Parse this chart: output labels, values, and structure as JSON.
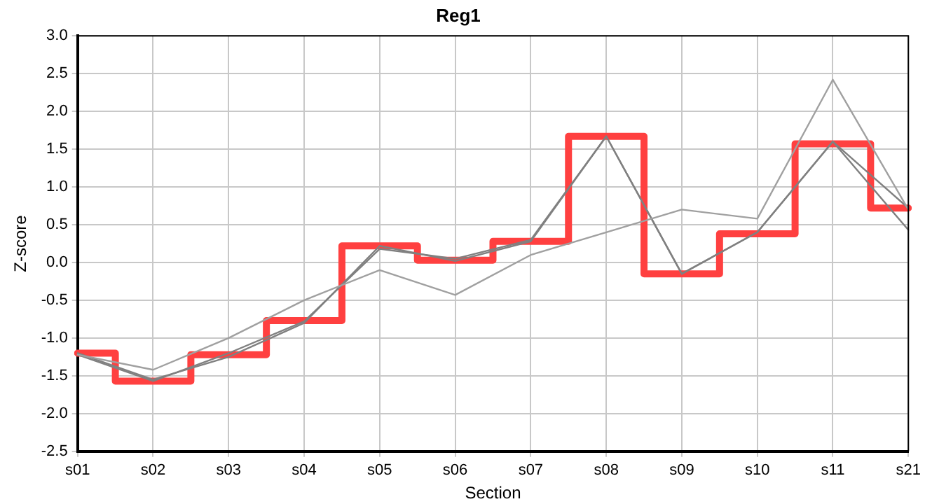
{
  "chart_data": {
    "type": "line",
    "title": "Reg1",
    "xlabel": "Section",
    "ylabel": "Z-score",
    "categories": [
      "s01",
      "s02",
      "s03",
      "s04",
      "s05",
      "s06",
      "s07",
      "s08",
      "s09",
      "s10",
      "s11",
      "s21"
    ],
    "series": [
      {
        "type": "line",
        "color": "#a0a0a0",
        "values": [
          -1.22,
          -1.42,
          -1.0,
          -0.5,
          -0.1,
          -0.43,
          0.1,
          0.4,
          0.7,
          0.58,
          2.42,
          0.7
        ]
      },
      {
        "type": "line",
        "color": "#808080",
        "values": [
          -1.2,
          -1.55,
          -1.25,
          -0.8,
          0.22,
          0.02,
          0.28,
          1.67,
          -0.15,
          0.4,
          1.6,
          0.43
        ]
      },
      {
        "type": "line",
        "color": "#808080",
        "values": [
          -1.22,
          -1.57,
          -1.2,
          -0.78,
          0.18,
          0.05,
          0.3,
          1.67,
          -0.15,
          0.4,
          1.6,
          0.72
        ]
      },
      {
        "type": "step",
        "color": "#ff4040",
        "values": [
          -1.2,
          -1.57,
          -1.22,
          -0.77,
          0.22,
          0.03,
          0.28,
          1.67,
          -0.15,
          0.38,
          1.57,
          0.72
        ]
      }
    ],
    "ylim": [
      -2.5,
      3.0
    ],
    "yticks": [
      {
        "value": -2.5,
        "label": "-2.5"
      },
      {
        "value": -2,
        "label": "-2.0"
      },
      -1.5,
      {
        "value": -1,
        "label": "-1.0"
      },
      -0.5,
      {
        "value": 0,
        "label": "0.0"
      },
      0.5,
      {
        "value": 1,
        "label": "1.0"
      },
      1.5,
      {
        "value": 2,
        "label": "2.0"
      },
      2.5,
      {
        "value": 3,
        "label": "3.0"
      }
    ],
    "grid": true,
    "legend": false,
    "marker": "none",
    "line_style": "solid"
  }
}
